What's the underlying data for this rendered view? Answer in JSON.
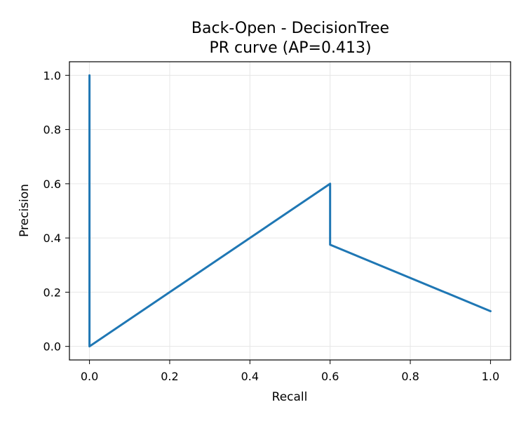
{
  "chart_data": {
    "type": "line",
    "title": "Back-Open - DecisionTree",
    "subtitle": "PR curve (AP=0.413)",
    "xlabel": "Recall",
    "ylabel": "Precision",
    "xlim": [
      -0.05,
      1.05
    ],
    "ylim": [
      -0.05,
      1.05
    ],
    "xticks": [
      0.0,
      0.2,
      0.4,
      0.6,
      0.8,
      1.0
    ],
    "yticks": [
      0.0,
      0.2,
      0.4,
      0.6,
      0.8,
      1.0
    ],
    "xtick_labels": [
      "0.0",
      "0.2",
      "0.4",
      "0.6",
      "0.8",
      "1.0"
    ],
    "ytick_labels": [
      "0.0",
      "0.2",
      "0.4",
      "0.6",
      "0.8",
      "1.0"
    ],
    "grid": true,
    "series": [
      {
        "color": "#1f77b4",
        "x": [
          0.0,
          0.0,
          0.6,
          0.6,
          1.0
        ],
        "y": [
          1.0,
          0.0,
          0.6,
          0.375,
          0.13
        ]
      }
    ]
  }
}
